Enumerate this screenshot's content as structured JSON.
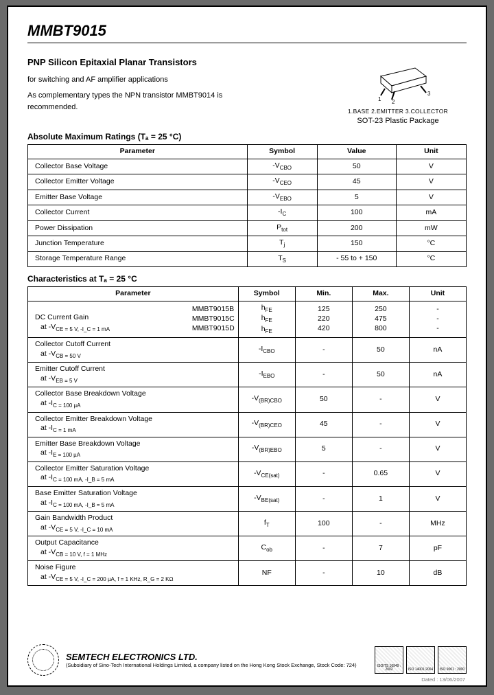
{
  "header": {
    "partNumber": "MMBT9015",
    "title": "PNP Silicon Epitaxial Planar Transistors",
    "desc1": "for switching and AF amplifier applications",
    "desc2": "As complementary types the NPN transistor MMBT9014 is recommended."
  },
  "package": {
    "pins": "1.BASE  2.EMITTER  3.COLLECTOR",
    "name": "SOT-23 Plastic Package"
  },
  "ratings": {
    "heading": "Absolute Maximum Ratings (Tₐ = 25 °C)",
    "columns": [
      "Parameter",
      "Symbol",
      "Value",
      "Unit"
    ],
    "rows": [
      {
        "param": "Collector Base Voltage",
        "symbol": "-V_CBO",
        "value": "50",
        "unit": "V"
      },
      {
        "param": "Collector Emitter Voltage",
        "symbol": "-V_CEO",
        "value": "45",
        "unit": "V"
      },
      {
        "param": "Emitter Base Voltage",
        "symbol": "-V_EBO",
        "value": "5",
        "unit": "V"
      },
      {
        "param": "Collector Current",
        "symbol": "-I_C",
        "value": "100",
        "unit": "mA"
      },
      {
        "param": "Power Dissipation",
        "symbol": "P_tot",
        "value": "200",
        "unit": "mW"
      },
      {
        "param": "Junction Temperature",
        "symbol": "T_j",
        "value": "150",
        "unit": "°C"
      },
      {
        "param": "Storage Temperature Range",
        "symbol": "T_S",
        "value": "- 55 to + 150",
        "unit": "°C"
      }
    ],
    "col_widths": [
      "50%",
      "16%",
      "18%",
      "16%"
    ]
  },
  "chars": {
    "heading": "Characteristics at Tₐ = 25 °C",
    "columns": [
      "Parameter",
      "Symbol",
      "Min.",
      "Max.",
      "Unit"
    ],
    "col_widths": [
      "48%",
      "13%",
      "13%",
      "13%",
      "13%"
    ],
    "rows": [
      {
        "param_main": "DC Current Gain",
        "param_cond": "at -V_CE = 5 V, -I_C = 1 mA",
        "models": [
          "MMBT9015B",
          "MMBT9015C",
          "MMBT9015D"
        ],
        "symbol": [
          "h_FE",
          "h_FE",
          "h_FE"
        ],
        "min": [
          "125",
          "220",
          "420"
        ],
        "max": [
          "250",
          "475",
          "800"
        ],
        "unit": [
          "-",
          "-",
          "-"
        ]
      },
      {
        "param_main": "Collector Cutoff Current",
        "param_cond": "at -V_CB = 50 V",
        "symbol": "-I_CBO",
        "min": "-",
        "max": "50",
        "unit": "nA"
      },
      {
        "param_main": "Emitter Cutoff Current",
        "param_cond": "at -V_EB = 5 V",
        "symbol": "-I_EBO",
        "min": "-",
        "max": "50",
        "unit": "nA"
      },
      {
        "param_main": "Collector Base Breakdown Voltage",
        "param_cond": "at -I_C = 100 µA",
        "symbol": "-V_(BR)CBO",
        "min": "50",
        "max": "-",
        "unit": "V"
      },
      {
        "param_main": "Collector Emitter Breakdown Voltage",
        "param_cond": "at -I_C = 1 mA",
        "symbol": "-V_(BR)CEO",
        "min": "45",
        "max": "-",
        "unit": "V"
      },
      {
        "param_main": "Emitter Base Breakdown Voltage",
        "param_cond": "at -I_E = 100 µA",
        "symbol": "-V_(BR)EBO",
        "min": "5",
        "max": "-",
        "unit": "V"
      },
      {
        "param_main": "Collector Emitter Saturation Voltage",
        "param_cond": "at -I_C = 100 mA, -I_B = 5 mA",
        "symbol": "-V_CE(sat)",
        "min": "-",
        "max": "0.65",
        "unit": "V"
      },
      {
        "param_main": "Base Emitter Saturation Voltage",
        "param_cond": "at -I_C = 100 mA, -I_B = 5 mA",
        "symbol": "-V_BE(sat)",
        "min": "-",
        "max": "1",
        "unit": "V"
      },
      {
        "param_main": "Gain Bandwidth Product",
        "param_cond": "at -V_CE = 5 V, -I_C = 10 mA",
        "symbol": "f_T",
        "min": "100",
        "max": "-",
        "unit": "MHz"
      },
      {
        "param_main": "Output Capacitance",
        "param_cond": "at -V_CB = 10 V, f = 1 MHz",
        "symbol": "C_ob",
        "min": "-",
        "max": "7",
        "unit": "pF"
      },
      {
        "param_main": "Noise Figure",
        "param_cond": "at -V_CE = 5 V, -I_C = 200 µA, f = 1 KHz, R_G = 2 KΩ",
        "symbol": "NF",
        "min": "-",
        "max": "10",
        "unit": "dB"
      }
    ]
  },
  "footer": {
    "company": "SEMTECH ELECTRONICS LTD.",
    "sub": "(Subsidiary of Sino-Tech International Holdings Limited, a company listed on the Hong Kong Stock Exchange, Stock Code: 724)",
    "certs": [
      "ISO/TS 16949 : 2002",
      "ISO 14001:2004",
      "ISO 9001 : 2000"
    ],
    "date": "Dated : 13/06/2007"
  }
}
